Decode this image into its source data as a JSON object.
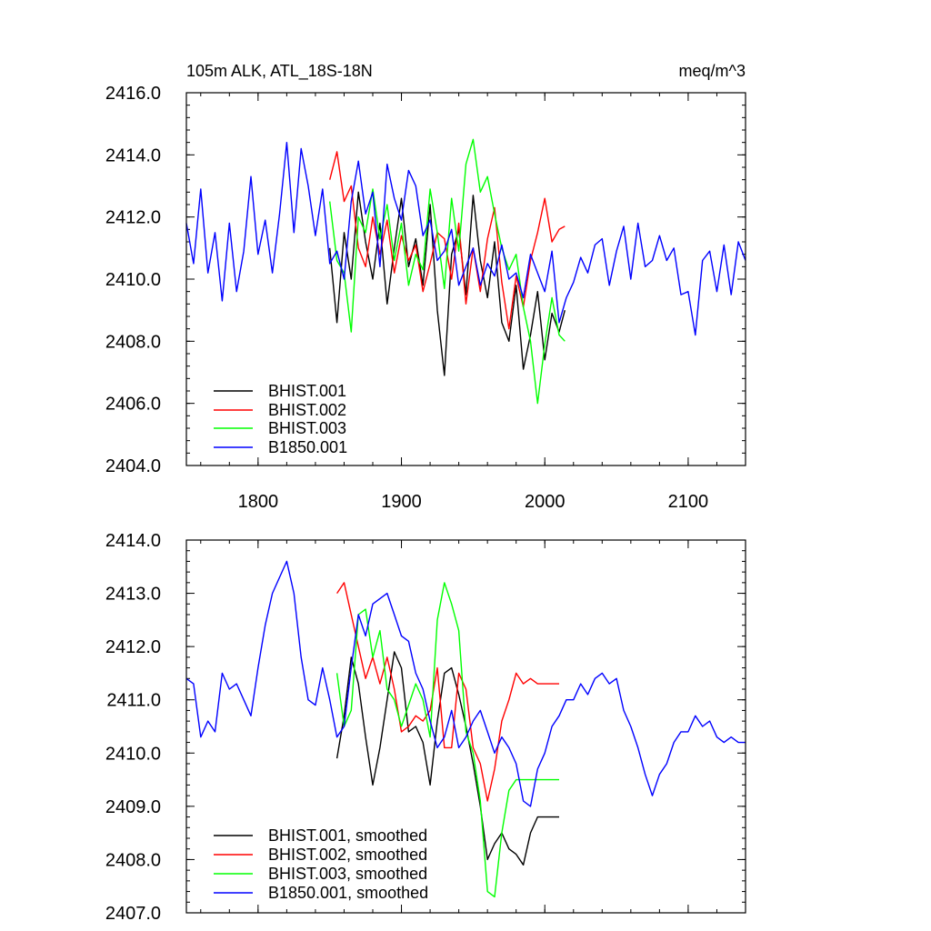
{
  "chart_data": [
    {
      "type": "line",
      "title": "105m ALK, ATL_18S-18N",
      "units": "meq/m^3",
      "xlabel": "",
      "ylabel": "",
      "xlim": [
        1750,
        2140
      ],
      "ylim": [
        2404.0,
        2416.0
      ],
      "x_ticks": [
        1800,
        1900,
        2000,
        2100
      ],
      "x_tick_labels": [
        "1800",
        "1900",
        "2000",
        "2100"
      ],
      "y_ticks": [
        2404.0,
        2406.0,
        2408.0,
        2410.0,
        2412.0,
        2414.0,
        2416.0
      ],
      "y_tick_labels": [
        "2404.0",
        "2406.0",
        "2408.0",
        "2410.0",
        "2412.0",
        "2414.0",
        "2416.0"
      ],
      "legend_position": "bottom-left",
      "series": [
        {
          "name": "BHIST.001",
          "color": "#000000",
          "x": [
            1850,
            1855,
            1860,
            1865,
            1870,
            1875,
            1880,
            1885,
            1890,
            1895,
            1900,
            1905,
            1910,
            1915,
            1920,
            1925,
            1930,
            1935,
            1940,
            1945,
            1950,
            1955,
            1960,
            1965,
            1970,
            1975,
            1980,
            1985,
            1990,
            1995,
            2000,
            2005,
            2010,
            2014
          ],
          "values": [
            2411.0,
            2408.6,
            2411.5,
            2410.0,
            2412.8,
            2411.2,
            2410.0,
            2411.8,
            2409.2,
            2411.0,
            2412.6,
            2410.4,
            2411.3,
            2409.8,
            2412.4,
            2409.0,
            2406.9,
            2410.8,
            2411.6,
            2409.5,
            2412.7,
            2410.6,
            2409.4,
            2411.2,
            2408.6,
            2408.0,
            2409.8,
            2407.1,
            2408.2,
            2409.6,
            2407.4,
            2408.9,
            2408.3,
            2409.0
          ]
        },
        {
          "name": "BHIST.002",
          "color": "#ff0000",
          "x": [
            1850,
            1855,
            1860,
            1865,
            1870,
            1875,
            1880,
            1885,
            1890,
            1895,
            1900,
            1905,
            1910,
            1915,
            1920,
            1925,
            1930,
            1935,
            1940,
            1945,
            1950,
            1955,
            1960,
            1965,
            1970,
            1975,
            1980,
            1985,
            1990,
            1995,
            2000,
            2005,
            2010,
            2014
          ],
          "values": [
            2413.2,
            2414.1,
            2412.5,
            2413.0,
            2411.0,
            2410.4,
            2412.0,
            2410.8,
            2411.9,
            2410.2,
            2411.4,
            2410.6,
            2411.1,
            2409.6,
            2410.5,
            2411.5,
            2411.3,
            2410.0,
            2411.8,
            2409.2,
            2411.0,
            2409.6,
            2411.3,
            2412.3,
            2409.9,
            2408.4,
            2410.1,
            2409.1,
            2410.6,
            2411.5,
            2412.6,
            2411.2,
            2411.6,
            2411.7
          ]
        },
        {
          "name": "BHIST.003",
          "color": "#00ff00",
          "x": [
            1850,
            1855,
            1860,
            1865,
            1870,
            1875,
            1880,
            1885,
            1890,
            1895,
            1900,
            1905,
            1910,
            1915,
            1920,
            1925,
            1930,
            1935,
            1940,
            1945,
            1950,
            1955,
            1960,
            1965,
            1970,
            1975,
            1980,
            1985,
            1990,
            1995,
            2000,
            2005,
            2010,
            2014
          ],
          "values": [
            2412.5,
            2410.6,
            2410.2,
            2408.3,
            2412.0,
            2411.5,
            2412.9,
            2411.3,
            2412.4,
            2410.6,
            2411.8,
            2409.8,
            2410.8,
            2410.3,
            2412.9,
            2411.5,
            2409.7,
            2412.6,
            2410.9,
            2413.7,
            2414.5,
            2412.8,
            2413.3,
            2412.1,
            2411.0,
            2410.3,
            2410.8,
            2409.1,
            2408.0,
            2406.0,
            2407.9,
            2409.4,
            2408.2,
            2408.0
          ]
        },
        {
          "name": "B1850.001",
          "color": "#0000ff",
          "x": [
            1750,
            1755,
            1760,
            1765,
            1770,
            1775,
            1780,
            1785,
            1790,
            1795,
            1800,
            1805,
            1810,
            1815,
            1820,
            1825,
            1830,
            1835,
            1840,
            1845,
            1850,
            1855,
            1860,
            1865,
            1870,
            1875,
            1880,
            1885,
            1890,
            1895,
            1900,
            1905,
            1910,
            1915,
            1920,
            1925,
            1930,
            1935,
            1940,
            1945,
            1950,
            1955,
            1960,
            1965,
            1970,
            1975,
            1980,
            1985,
            1990,
            1995,
            2000,
            2005,
            2010,
            2015,
            2020,
            2025,
            2030,
            2035,
            2040,
            2045,
            2050,
            2055,
            2060,
            2065,
            2070,
            2075,
            2080,
            2085,
            2090,
            2095,
            2100,
            2105,
            2110,
            2115,
            2120,
            2125,
            2130,
            2135,
            2140
          ],
          "values": [
            2411.8,
            2410.5,
            2412.9,
            2410.2,
            2411.5,
            2409.3,
            2411.8,
            2409.6,
            2410.9,
            2413.3,
            2410.8,
            2411.9,
            2410.2,
            2412.1,
            2414.4,
            2411.5,
            2414.2,
            2413.0,
            2411.4,
            2412.9,
            2410.5,
            2410.9,
            2410.0,
            2412.5,
            2413.8,
            2412.1,
            2412.8,
            2410.4,
            2413.7,
            2412.6,
            2411.9,
            2413.5,
            2413.0,
            2411.4,
            2411.9,
            2410.6,
            2410.9,
            2411.6,
            2409.8,
            2410.4,
            2411.0,
            2409.8,
            2410.5,
            2410.1,
            2411.1,
            2410.0,
            2410.2,
            2409.4,
            2410.8,
            2410.2,
            2409.6,
            2410.9,
            2408.6,
            2409.4,
            2409.9,
            2410.7,
            2410.2,
            2411.1,
            2411.3,
            2409.8,
            2410.9,
            2411.7,
            2410.0,
            2411.8,
            2410.4,
            2410.6,
            2411.4,
            2410.6,
            2411.0,
            2409.5,
            2409.6,
            2408.2,
            2410.6,
            2410.9,
            2409.6,
            2411.1,
            2409.5,
            2411.2,
            2410.6
          ]
        }
      ],
      "legend": [
        "BHIST.001",
        "BHIST.002",
        "BHIST.003",
        "B1850.001"
      ]
    },
    {
      "type": "line",
      "title": "",
      "xlabel": "",
      "ylabel": "",
      "xlim": [
        1750,
        2140
      ],
      "ylim": [
        2407.0,
        2414.0
      ],
      "x_ticks": [
        1800,
        1900,
        2000,
        2100
      ],
      "y_ticks": [
        2407.0,
        2408.0,
        2409.0,
        2410.0,
        2411.0,
        2412.0,
        2413.0,
        2414.0
      ],
      "y_tick_labels": [
        "2407.0",
        "2408.0",
        "2409.0",
        "2410.0",
        "2411.0",
        "2412.0",
        "2413.0",
        "2414.0"
      ],
      "legend_position": "bottom-left",
      "series": [
        {
          "name": "BHIST.001, smoothed",
          "color": "#000000",
          "x": [
            1855,
            1860,
            1865,
            1870,
            1875,
            1880,
            1885,
            1890,
            1895,
            1900,
            1905,
            1910,
            1915,
            1920,
            1925,
            1930,
            1935,
            1940,
            1945,
            1950,
            1955,
            1960,
            1965,
            1970,
            1975,
            1980,
            1985,
            1990,
            1995,
            2000,
            2005,
            2010
          ],
          "values": [
            2409.9,
            2410.7,
            2411.8,
            2411.3,
            2410.3,
            2409.4,
            2410.1,
            2411.0,
            2411.9,
            2411.6,
            2410.4,
            2410.5,
            2410.2,
            2409.4,
            2410.6,
            2411.5,
            2411.6,
            2411.1,
            2410.5,
            2409.8,
            2409.0,
            2408.0,
            2408.3,
            2408.5,
            2408.2,
            2408.1,
            2407.9,
            2408.5,
            2408.8,
            2408.8,
            2408.8,
            2408.8
          ]
        },
        {
          "name": "BHIST.002, smoothed",
          "color": "#ff0000",
          "x": [
            1855,
            1860,
            1865,
            1870,
            1875,
            1880,
            1885,
            1890,
            1895,
            1900,
            1905,
            1910,
            1915,
            1920,
            1925,
            1930,
            1935,
            1940,
            1945,
            1950,
            1955,
            1960,
            1965,
            1970,
            1975,
            1980,
            1985,
            1990,
            1995,
            2000,
            2005,
            2010
          ],
          "values": [
            2413.0,
            2413.2,
            2412.6,
            2412.0,
            2411.4,
            2411.8,
            2411.3,
            2411.8,
            2411.2,
            2410.4,
            2410.5,
            2410.7,
            2410.6,
            2410.8,
            2411.6,
            2410.1,
            2410.1,
            2411.5,
            2411.2,
            2410.1,
            2409.8,
            2409.1,
            2409.7,
            2410.6,
            2411.0,
            2411.5,
            2411.3,
            2411.4,
            2411.3,
            2411.3,
            2411.3,
            2411.3
          ]
        },
        {
          "name": "BHIST.003, smoothed",
          "color": "#00ff00",
          "x": [
            1855,
            1860,
            1865,
            1870,
            1875,
            1880,
            1885,
            1890,
            1895,
            1900,
            1905,
            1910,
            1915,
            1920,
            1925,
            1930,
            1935,
            1940,
            1945,
            1950,
            1955,
            1960,
            1965,
            1970,
            1975,
            1980,
            1985,
            1990,
            1995,
            2000,
            2005,
            2010
          ],
          "values": [
            2411.5,
            2410.5,
            2410.8,
            2412.6,
            2412.7,
            2411.8,
            2412.3,
            2411.2,
            2411.0,
            2410.5,
            2410.9,
            2411.3,
            2411.0,
            2410.3,
            2412.5,
            2413.2,
            2412.8,
            2412.3,
            2410.4,
            2410.0,
            2409.1,
            2407.4,
            2407.3,
            2408.5,
            2409.3,
            2409.5,
            2409.5,
            2409.5,
            2409.5,
            2409.5,
            2409.5,
            2409.5
          ]
        },
        {
          "name": "B1850.001, smoothed",
          "color": "#0000ff",
          "x": [
            1750,
            1755,
            1760,
            1765,
            1770,
            1775,
            1780,
            1785,
            1790,
            1795,
            1800,
            1805,
            1810,
            1815,
            1820,
            1825,
            1830,
            1835,
            1840,
            1845,
            1850,
            1855,
            1860,
            1865,
            1870,
            1875,
            1880,
            1885,
            1890,
            1895,
            1900,
            1905,
            1910,
            1915,
            1920,
            1925,
            1930,
            1935,
            1940,
            1945,
            1950,
            1955,
            1960,
            1965,
            1970,
            1975,
            1980,
            1985,
            1990,
            1995,
            2000,
            2005,
            2010,
            2015,
            2020,
            2025,
            2030,
            2035,
            2040,
            2045,
            2050,
            2055,
            2060,
            2065,
            2070,
            2075,
            2080,
            2085,
            2090,
            2095,
            2100,
            2105,
            2110,
            2115,
            2120,
            2125,
            2130,
            2135,
            2140
          ],
          "values": [
            2411.4,
            2411.3,
            2410.3,
            2410.6,
            2410.4,
            2411.5,
            2411.2,
            2411.3,
            2411.0,
            2410.7,
            2411.6,
            2412.4,
            2413.0,
            2413.3,
            2413.6,
            2413.0,
            2411.8,
            2411.0,
            2410.9,
            2411.6,
            2411.0,
            2410.3,
            2410.5,
            2411.6,
            2412.6,
            2412.2,
            2412.8,
            2412.9,
            2413.0,
            2412.6,
            2412.2,
            2412.1,
            2411.5,
            2411.2,
            2410.6,
            2410.1,
            2410.3,
            2410.8,
            2410.1,
            2410.3,
            2410.6,
            2410.8,
            2410.4,
            2410.0,
            2410.3,
            2410.1,
            2409.8,
            2409.1,
            2409.0,
            2409.7,
            2410.0,
            2410.5,
            2410.7,
            2411.0,
            2411.0,
            2411.3,
            2411.1,
            2411.4,
            2411.5,
            2411.3,
            2411.4,
            2410.8,
            2410.5,
            2410.1,
            2409.6,
            2409.2,
            2409.6,
            2409.8,
            2410.2,
            2410.4,
            2410.4,
            2410.7,
            2410.5,
            2410.6,
            2410.3,
            2410.2,
            2410.3,
            2410.2,
            2410.2
          ]
        }
      ],
      "legend": [
        "BHIST.001, smoothed",
        "BHIST.002, smoothed",
        "BHIST.003, smoothed",
        "B1850.001, smoothed"
      ]
    }
  ]
}
